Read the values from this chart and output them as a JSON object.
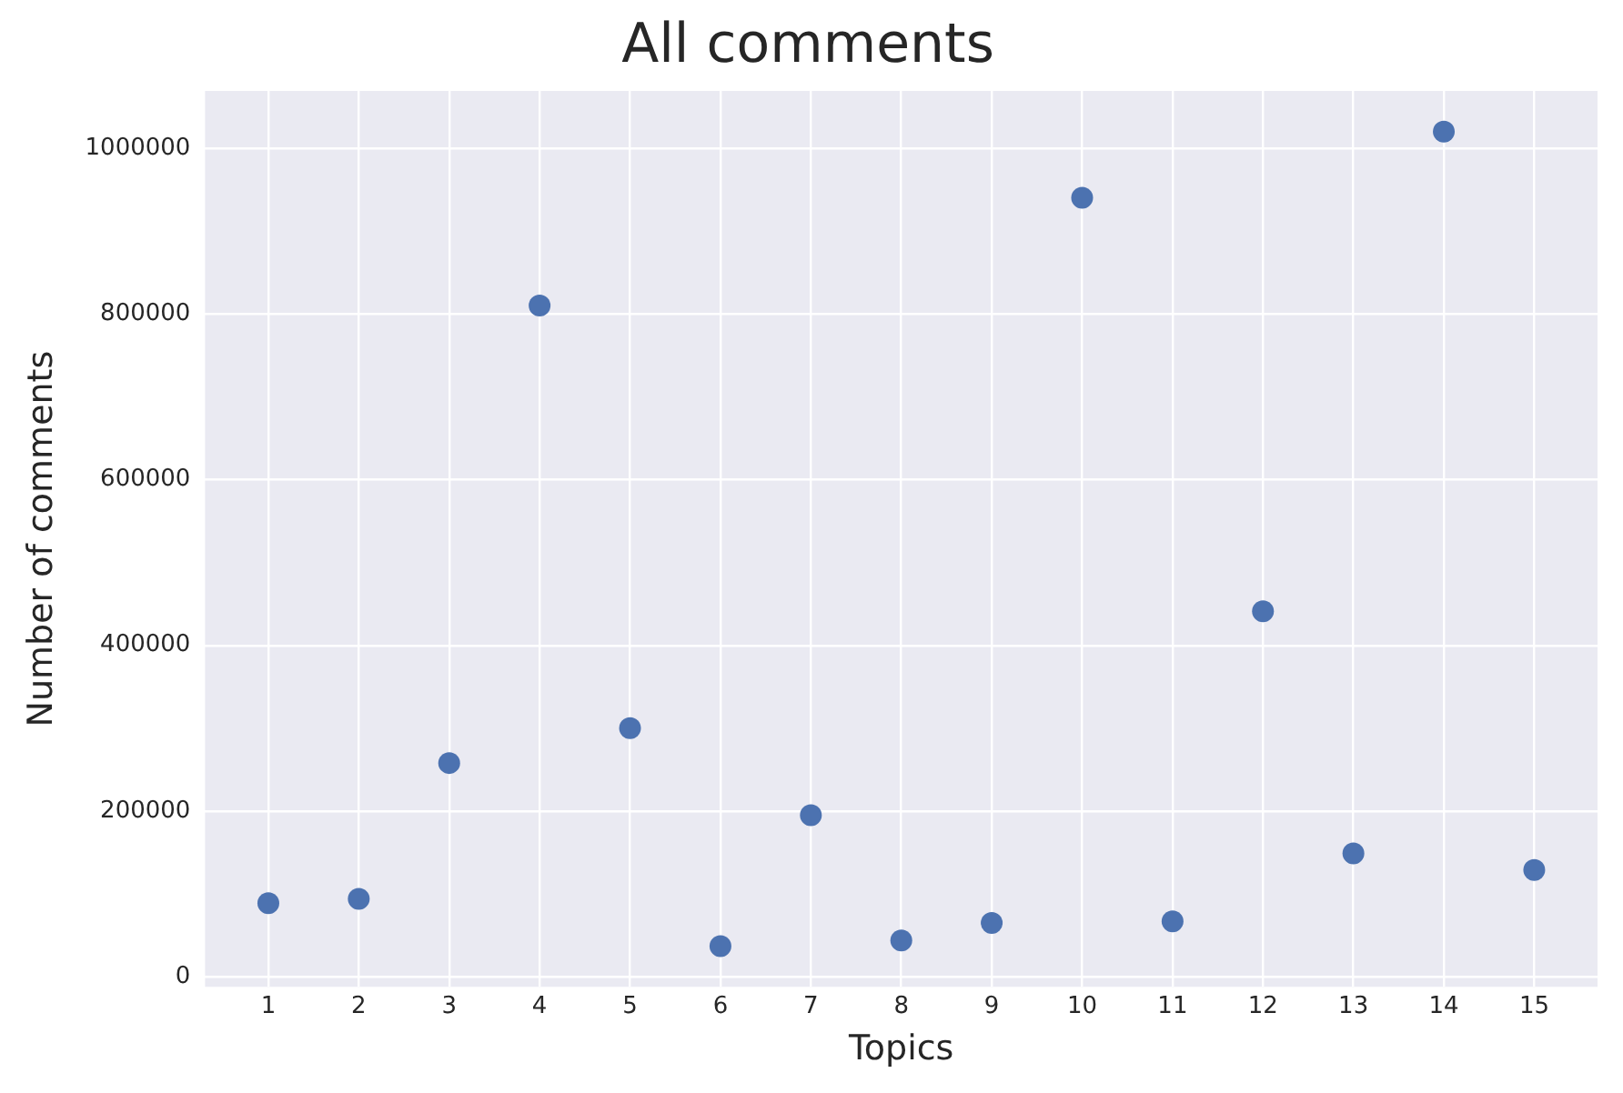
{
  "chart_data": {
    "type": "scatter",
    "title": "All comments",
    "xlabel": "Topics",
    "ylabel": "Number of comments",
    "x": [
      1,
      2,
      3,
      4,
      5,
      6,
      7,
      8,
      9,
      10,
      11,
      12,
      13,
      14,
      15
    ],
    "series": [
      {
        "color": "#4c72b0",
        "values": [
          89000,
          94000,
          258000,
          810000,
          300000,
          37000,
          195000,
          44000,
          65000,
          940000,
          67000,
          441000,
          149000,
          1020000,
          129000
        ]
      }
    ],
    "xlim": [
      0.3,
      15.7
    ],
    "xticks": [
      1,
      2,
      3,
      4,
      5,
      6,
      7,
      8,
      9,
      10,
      11,
      12,
      13,
      14,
      15
    ],
    "ylim": [
      -12000,
      1069000
    ],
    "yticks": [
      0,
      200000,
      400000,
      600000,
      800000,
      1000000
    ],
    "grid": true,
    "marker": "circle",
    "legend": false
  }
}
